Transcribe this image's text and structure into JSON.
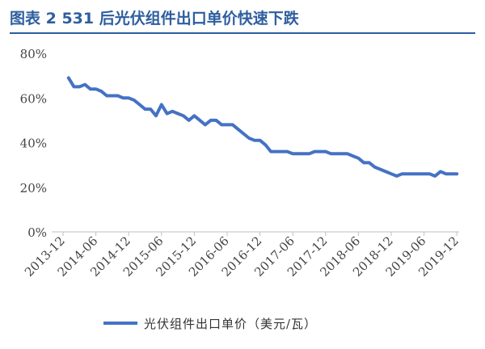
{
  "title": "图表 2   531 后光伏组件出口单价快速下跌",
  "colors": {
    "accent": "#2E5E9E",
    "series": "#4472C4",
    "axis": "#BFBFBF"
  },
  "chart_data": {
    "type": "line",
    "ylim": [
      0,
      0.8
    ],
    "y_ticks": [
      0,
      0.2,
      0.4,
      0.6,
      0.8
    ],
    "y_tick_labels": [
      "0%",
      "20%",
      "40%",
      "60%",
      "80%"
    ],
    "x_tick_labels": [
      "2013-12",
      "2014-06",
      "2014-12",
      "2015-06",
      "2015-12",
      "2016-06",
      "2016-12",
      "2017-06",
      "2017-12",
      "2018-06",
      "2018-12",
      "2019-06",
      "2019-12"
    ],
    "grid": false,
    "legend_position": "bottom",
    "series": [
      {
        "name": "光伏组件出口单价（美元/瓦）",
        "x": [
          "2014-01",
          "2014-02",
          "2014-03",
          "2014-04",
          "2014-05",
          "2014-06",
          "2014-07",
          "2014-08",
          "2014-09",
          "2014-10",
          "2014-11",
          "2014-12",
          "2015-01",
          "2015-02",
          "2015-03",
          "2015-04",
          "2015-05",
          "2015-06",
          "2015-07",
          "2015-08",
          "2015-09",
          "2015-10",
          "2015-11",
          "2015-12",
          "2016-01",
          "2016-02",
          "2016-03",
          "2016-04",
          "2016-05",
          "2016-06",
          "2016-07",
          "2016-08",
          "2016-09",
          "2016-10",
          "2016-11",
          "2016-12",
          "2017-01",
          "2017-02",
          "2017-03",
          "2017-04",
          "2017-05",
          "2017-06",
          "2017-07",
          "2017-08",
          "2017-09",
          "2017-10",
          "2017-11",
          "2017-12",
          "2018-01",
          "2018-02",
          "2018-03",
          "2018-04",
          "2018-05",
          "2018-06",
          "2018-07",
          "2018-08",
          "2018-09",
          "2018-10",
          "2018-11",
          "2018-12",
          "2019-01",
          "2019-02",
          "2019-03",
          "2019-04",
          "2019-05",
          "2019-06",
          "2019-07",
          "2019-08",
          "2019-09",
          "2019-10",
          "2019-11",
          "2019-12"
        ],
        "values": [
          0.69,
          0.65,
          0.65,
          0.66,
          0.64,
          0.64,
          0.63,
          0.61,
          0.61,
          0.61,
          0.6,
          0.6,
          0.59,
          0.57,
          0.55,
          0.55,
          0.52,
          0.57,
          0.53,
          0.54,
          0.53,
          0.52,
          0.5,
          0.52,
          0.5,
          0.48,
          0.5,
          0.5,
          0.48,
          0.48,
          0.48,
          0.46,
          0.44,
          0.42,
          0.41,
          0.41,
          0.39,
          0.36,
          0.36,
          0.36,
          0.36,
          0.35,
          0.35,
          0.35,
          0.35,
          0.36,
          0.36,
          0.36,
          0.35,
          0.35,
          0.35,
          0.35,
          0.34,
          0.33,
          0.31,
          0.31,
          0.29,
          0.28,
          0.27,
          0.26,
          0.25,
          0.26,
          0.26,
          0.26,
          0.26,
          0.26,
          0.26,
          0.25,
          0.27,
          0.26,
          0.26,
          0.26
        ]
      }
    ]
  }
}
